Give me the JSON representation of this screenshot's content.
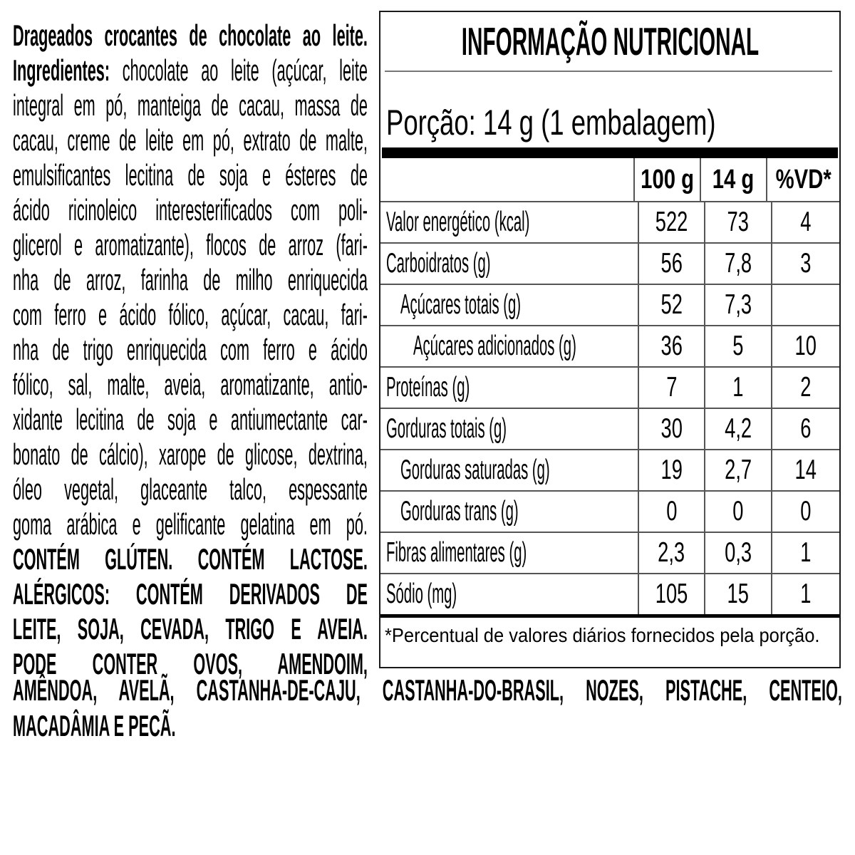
{
  "product": {
    "description": "Drageados crocantes de chocolate ao leite.",
    "ingredients_label": "Ingredientes:",
    "ingredients_first_line_rest": " chocolate ao leite (açúcar, leite",
    "ingredients_lines": [
      "integral em pó, manteiga de cacau, massa de",
      "cacau, creme de leite em pó, extrato de malte,",
      "emulsificantes lecitina de soja e ésteres de",
      "ácido ricinoleico interesterificados com poli-",
      "glicerol e aromatizante), flocos de arroz (fari-",
      "nha de arroz, farinha de milho enriquecida",
      "com ferro e ácido fólico, açúcar, cacau, fari-",
      "nha de trigo enriquecida com ferro e ácido",
      "fólico, sal, malte, aveia, aromatizante, antio-",
      "xidante lecitina de soja e antiumectante car-",
      "bonato de cálcio), xarope de glicose, dextrina,",
      "óleo vegetal, glaceante talco, espessante",
      "goma arábica e gelificante gelatina em pó."
    ],
    "allergen_lines": [
      "CONTÉM GLÚTEN. CONTÉM LACTOSE.",
      "ALÉRGICOS: CONTÉM DERIVADOS DE",
      "LEITE, SOJA, CEVADA, TRIGO E AVEIA.",
      "PODE CONTER OVOS, AMENDOIM,"
    ],
    "allergen_overflow_lines": [
      "AMÊNDOA, AVELÃ, CASTANHA-DE-CAJU, CASTANHA-DO-BRASIL, NOZES, PISTACHE, CENTEIO,",
      "MACADÂMIA E PECÃ."
    ]
  },
  "nutrition": {
    "title": "INFORMAÇÃO NUTRICIONAL",
    "portion": "Porção: 14 g (1 embalagem)",
    "col_headers": [
      "100 g",
      "14 g",
      "%VD*"
    ],
    "rows": [
      {
        "label": "Valor energético (kcal)",
        "v100": "522",
        "v14": "73",
        "vd": "4"
      },
      {
        "label": "Carboidratos (g)",
        "v100": "56",
        "v14": "7,8",
        "vd": "3"
      },
      {
        "label": "Açúcares totais (g)",
        "v100": "52",
        "v14": "7,3",
        "vd": ""
      },
      {
        "label": "Açúcares adicionados (g)",
        "v100": "36",
        "v14": "5",
        "vd": "10"
      },
      {
        "label": "Proteínas (g)",
        "v100": "7",
        "v14": "1",
        "vd": "2"
      },
      {
        "label": "Gorduras totais (g)",
        "v100": "30",
        "v14": "4,2",
        "vd": "6"
      },
      {
        "label": "Gorduras saturadas (g)",
        "v100": "19",
        "v14": "2,7",
        "vd": "14"
      },
      {
        "label": "Gorduras trans (g)",
        "v100": "0",
        "v14": "0",
        "vd": "0"
      },
      {
        "label": "Fibras alimentares (g)",
        "v100": "2,3",
        "v14": "0,3",
        "vd": "1"
      },
      {
        "label": "Sódio (mg)",
        "v100": "105",
        "v14": "15",
        "vd": "1"
      }
    ],
    "footnote": "*Percentual de valores diários fornecidos pela porção."
  },
  "colors": {
    "text": "#000000",
    "panel_border": "#1a1a1a",
    "thin_rule": "#555555",
    "thick_bar": "#000000",
    "background": "#ffffff"
  }
}
